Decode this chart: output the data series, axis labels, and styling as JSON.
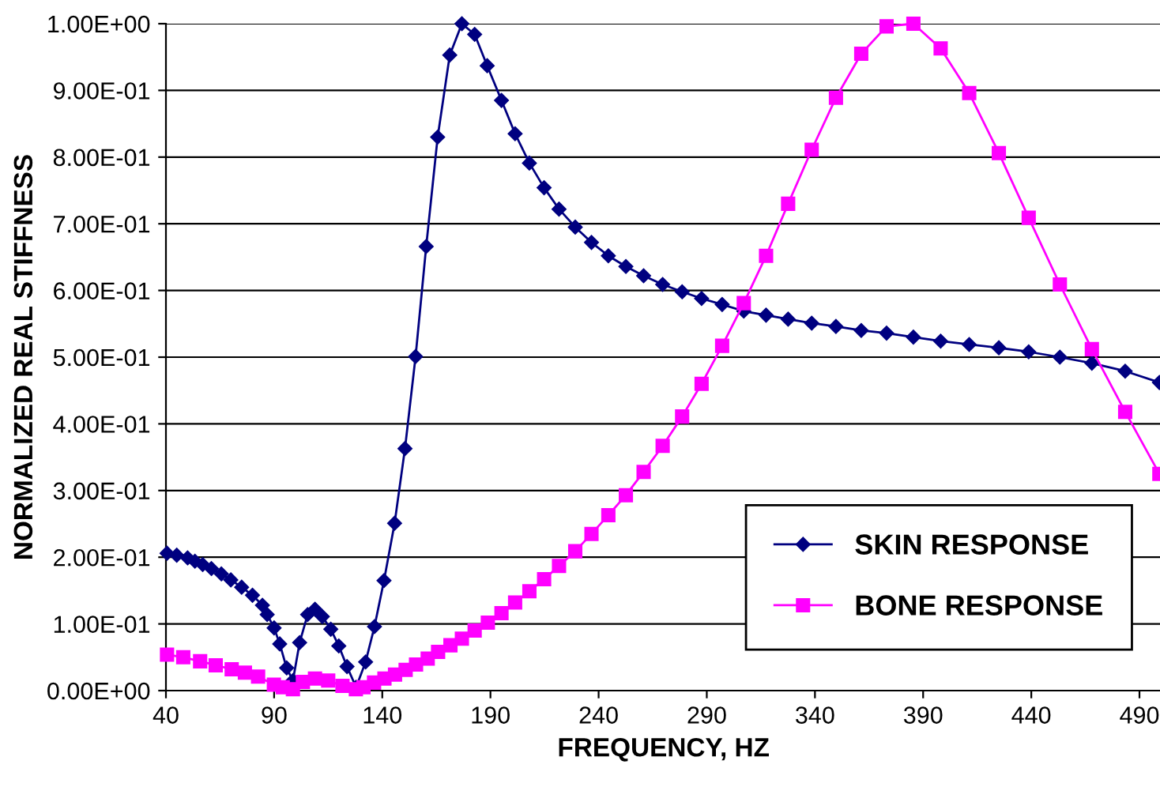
{
  "chart_data": {
    "type": "line",
    "xlabel": "FREQUENCY, HZ",
    "ylabel": "NORMALIZED REAL STIFFNESS",
    "xlim": [
      40,
      500
    ],
    "xticks": [
      40,
      90,
      140,
      190,
      240,
      290,
      340,
      390,
      440,
      490
    ],
    "ylim": [
      0,
      1
    ],
    "yticks": [
      {
        "value": 0,
        "label": "0.00E+00"
      },
      {
        "value": 0.1,
        "label": "1.00E-01"
      },
      {
        "value": 0.2,
        "label": "2.00E-01"
      },
      {
        "value": 0.3,
        "label": "3.00E-01"
      },
      {
        "value": 0.4,
        "label": "4.00E-01"
      },
      {
        "value": 0.5,
        "label": "5.00E-01"
      },
      {
        "value": 0.6,
        "label": "6.00E-01"
      },
      {
        "value": 0.7,
        "label": "7.00E-01"
      },
      {
        "value": 0.8,
        "label": "8.00E-01"
      },
      {
        "value": 0.9,
        "label": "9.00E-01"
      },
      {
        "value": 1,
        "label": "1.00E+00"
      }
    ],
    "grid": "y",
    "legend": "bottom right",
    "series": [
      {
        "name": "SKIN RESPONSE",
        "color": "#000080",
        "marker": "diamond",
        "x": [
          40.5,
          45,
          50,
          53.4,
          57,
          61,
          65.6,
          70,
          75,
          80,
          84.6,
          86.8,
          90,
          92.6,
          95.8,
          98.7,
          101.8,
          105.5,
          108.9,
          112.3,
          116.2,
          119.9,
          123.7,
          127.9,
          132.3,
          136.4,
          140.8,
          145.7,
          150.5,
          155.4,
          160.3,
          165.6,
          171.2,
          176.8,
          182.7,
          188.5,
          195.1,
          201.4,
          208,
          214.8,
          221.7,
          229.2,
          236.7,
          244.5,
          252.6,
          260.8,
          269.6,
          278.6,
          287.6,
          297.1,
          307.1,
          317.4,
          327.6,
          338.5,
          349.7,
          361.4,
          373.1,
          385.5,
          398.1,
          411.3,
          425,
          438.8,
          453.2,
          468,
          483.4,
          499.2
        ],
        "values": [
          0.206,
          0.203,
          0.199,
          0.194,
          0.189,
          0.183,
          0.175,
          0.166,
          0.155,
          0.143,
          0.128,
          0.114,
          0.094,
          0.07,
          0.034,
          0.015,
          0.072,
          0.114,
          0.122,
          0.111,
          0.092,
          0.067,
          0.036,
          0.005,
          0.043,
          0.096,
          0.165,
          0.251,
          0.363,
          0.501,
          0.666,
          0.83,
          0.953,
          1.0,
          0.984,
          0.937,
          0.885,
          0.835,
          0.791,
          0.754,
          0.722,
          0.695,
          0.672,
          0.652,
          0.636,
          0.622,
          0.609,
          0.598,
          0.588,
          0.579,
          0.569,
          0.563,
          0.557,
          0.551,
          0.546,
          0.54,
          0.536,
          0.53,
          0.524,
          0.519,
          0.514,
          0.508,
          0.5,
          0.491,
          0.479,
          0.462
        ]
      },
      {
        "name": "BONE RESPONSE",
        "color": "#ff00ff",
        "marker": "square",
        "x": [
          40.5,
          48,
          55.8,
          63,
          70.4,
          76.5,
          82.6,
          89.9,
          94,
          98.7,
          103.3,
          108.9,
          115,
          121.6,
          127.8,
          131.3,
          136.2,
          141,
          145.9,
          150.8,
          155.6,
          161,
          165.8,
          171.5,
          176.8,
          182.7,
          188.8,
          195.1,
          201.4,
          208,
          214.8,
          221.7,
          229.2,
          236.7,
          244.5,
          252.6,
          260.8,
          269.6,
          278.6,
          287.6,
          297.1,
          307.1,
          317.4,
          327.6,
          338.5,
          349.7,
          361.4,
          373.1,
          385.5,
          398.1,
          411.3,
          425,
          438.8,
          453.2,
          468,
          483.4,
          499.2
        ],
        "values": [
          0.054,
          0.05,
          0.044,
          0.038,
          0.032,
          0.027,
          0.021,
          0.009,
          0.005,
          0.002,
          0.013,
          0.018,
          0.015,
          0.007,
          0.002,
          0.005,
          0.012,
          0.018,
          0.024,
          0.031,
          0.039,
          0.048,
          0.058,
          0.068,
          0.078,
          0.09,
          0.102,
          0.116,
          0.132,
          0.149,
          0.167,
          0.187,
          0.209,
          0.235,
          0.263,
          0.293,
          0.328,
          0.367,
          0.411,
          0.46,
          0.517,
          0.581,
          0.652,
          0.73,
          0.811,
          0.889,
          0.955,
          0.996,
          1.0,
          0.963,
          0.896,
          0.806,
          0.709,
          0.609,
          0.512,
          0.418,
          0.325
        ]
      }
    ]
  }
}
